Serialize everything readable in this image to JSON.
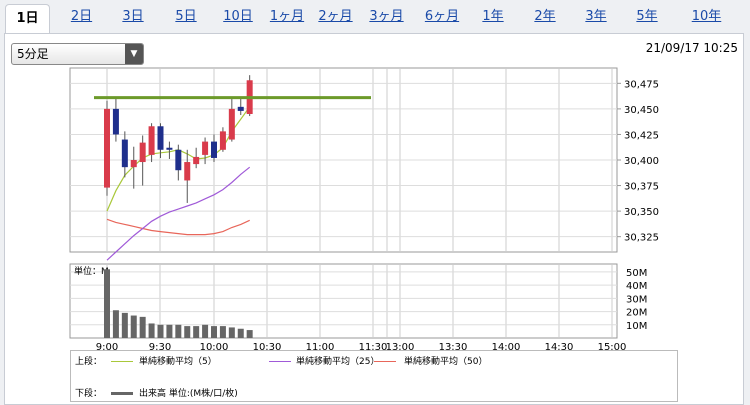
{
  "tabs": [
    "1日",
    "2日",
    "3日",
    "5日",
    "10日",
    "1ヶ月",
    "2ヶ月",
    "3ヶ月",
    "6ヶ月",
    "1年",
    "2年",
    "3年",
    "5年",
    "10年"
  ],
  "active_tab": 0,
  "interval_select": "5分足",
  "timestamp": "21/09/17 10:25",
  "colors": {
    "up": "#d93b4b",
    "down": "#1f2f8c",
    "ma5": "#a9c83a",
    "ma25": "#a05ad8",
    "ma50": "#e8665a",
    "hline": "#6c9a2a",
    "volume": "#666666"
  },
  "chart_data": {
    "type": "candlestick",
    "x_ticks": [
      "9:00",
      "9:30",
      "10:00",
      "10:30",
      "11:00",
      "11:30",
      "13:00",
      "13:30",
      "14:00",
      "14:30",
      "15:00"
    ],
    "price_ticks": [
      "30,475",
      "30,450",
      "30,425",
      "30,400",
      "30,375",
      "30,350",
      "30,325"
    ],
    "price_tick_values": [
      30475,
      30450,
      30425,
      30400,
      30375,
      30350,
      30325
    ],
    "ylim": [
      30310,
      30490
    ],
    "reference_line": 30461,
    "candles": [
      {
        "t": "9:00",
        "o": 30373,
        "h": 30458,
        "l": 30365,
        "c": 30450
      },
      {
        "t": "9:05",
        "o": 30450,
        "h": 30462,
        "l": 30418,
        "c": 30425
      },
      {
        "t": "9:10",
        "o": 30420,
        "h": 30428,
        "l": 30383,
        "c": 30393
      },
      {
        "t": "9:15",
        "o": 30393,
        "h": 30413,
        "l": 30372,
        "c": 30400
      },
      {
        "t": "9:20",
        "o": 30398,
        "h": 30424,
        "l": 30375,
        "c": 30417
      },
      {
        "t": "9:25",
        "o": 30405,
        "h": 30436,
        "l": 30398,
        "c": 30433
      },
      {
        "t": "9:30",
        "o": 30433,
        "h": 30436,
        "l": 30402,
        "c": 30410
      },
      {
        "t": "9:35",
        "o": 30412,
        "h": 30418,
        "l": 30401,
        "c": 30410
      },
      {
        "t": "9:40",
        "o": 30410,
        "h": 30415,
        "l": 30380,
        "c": 30390
      },
      {
        "t": "9:45",
        "o": 30380,
        "h": 30410,
        "l": 30358,
        "c": 30398
      },
      {
        "t": "9:50",
        "o": 30396,
        "h": 30412,
        "l": 30392,
        "c": 30403
      },
      {
        "t": "9:55",
        "o": 30405,
        "h": 30422,
        "l": 30396,
        "c": 30418
      },
      {
        "t": "10:00",
        "o": 30418,
        "h": 30425,
        "l": 30398,
        "c": 30402
      },
      {
        "t": "10:05",
        "o": 30410,
        "h": 30432,
        "l": 30408,
        "c": 30428
      },
      {
        "t": "10:10",
        "o": 30420,
        "h": 30462,
        "l": 30418,
        "c": 30450
      },
      {
        "t": "10:15",
        "o": 30452,
        "h": 30462,
        "l": 30444,
        "c": 30448
      },
      {
        "t": "10:20",
        "o": 30445,
        "h": 30483,
        "l": 30443,
        "c": 30478
      }
    ],
    "ma5": [
      30350,
      30370,
      30385,
      30394,
      30402,
      30406,
      30407,
      30408,
      30410,
      30406,
      30401,
      30402,
      30405,
      30412,
      30428,
      30440,
      30452
    ],
    "ma25": [
      30302,
      30310,
      30318,
      30326,
      30333,
      30340,
      30345,
      30349,
      30352,
      30355,
      30358,
      30362,
      30366,
      30371,
      30378,
      30386,
      30393
    ],
    "ma50": [
      30342,
      30339,
      30337,
      30335,
      30333,
      30331,
      30330,
      30329,
      30328,
      30327,
      30327,
      30327,
      30328,
      30330,
      30334,
      30337,
      30341
    ],
    "volume_label": "単位：M",
    "volume_ticks": [
      "50M",
      "40M",
      "30M",
      "20M",
      "10M"
    ],
    "volume_tick_values": [
      50,
      40,
      30,
      20,
      10
    ],
    "volume_ylim": [
      0,
      56
    ],
    "volume": [
      52,
      21,
      19,
      17,
      16,
      11,
      10,
      10,
      10,
      9,
      9,
      10,
      9,
      9,
      8,
      7,
      6
    ]
  },
  "legend": {
    "upper_label": "上段：",
    "lower_label": "下段：",
    "ma5_label": "単純移動平均（5）",
    "ma25_label": "単純移動平均（25）",
    "ma50_label": "単純移動平均（50）",
    "volume_label": "出来高 単位:(M株/口/枚)"
  }
}
